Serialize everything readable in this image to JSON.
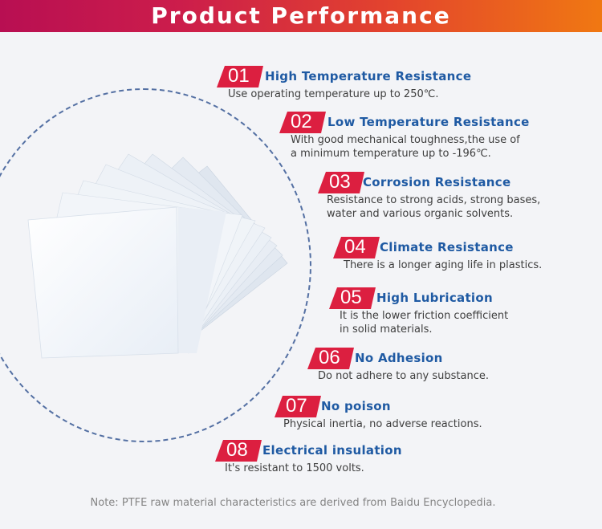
{
  "header": {
    "title": "Product Performance"
  },
  "colors": {
    "badge": "#dc1f40",
    "heading": "#1f5aa3",
    "banner_start": "#b80f52",
    "banner_end": "#f07812"
  },
  "features": [
    {
      "num": "01",
      "title": "High Temperature Resistance",
      "desc": [
        "Use operating temperature up to 250℃."
      ]
    },
    {
      "num": "02",
      "title": "Low Temperature Resistance",
      "desc": [
        "With good mechanical toughness,the use of",
        " a minimum temperature up to -196℃."
      ]
    },
    {
      "num": "03",
      "title": "Corrosion Resistance",
      "desc": [
        "Resistance to strong acids, strong bases,",
        "water and various organic solvents."
      ]
    },
    {
      "num": "04",
      "title": "Climate Resistance",
      "desc": [
        "There is a longer aging life in plastics."
      ]
    },
    {
      "num": "05",
      "title": "High Lubrication",
      "desc": [
        "It is the lower friction coefficient",
        "in solid materials."
      ]
    },
    {
      "num": "06",
      "title": "No Adhesion",
      "desc": [
        "Do not adhere to any substance."
      ]
    },
    {
      "num": "07",
      "title": "No poison",
      "desc": [
        "Physical inertia, no adverse reactions."
      ]
    },
    {
      "num": "08",
      "title": "Electrical insulation",
      "desc": [
        "It's resistant to 1500 volts."
      ]
    }
  ],
  "footer": {
    "note": "Note: PTFE raw material characteristics are derived from Baidu Encyclopedia."
  }
}
